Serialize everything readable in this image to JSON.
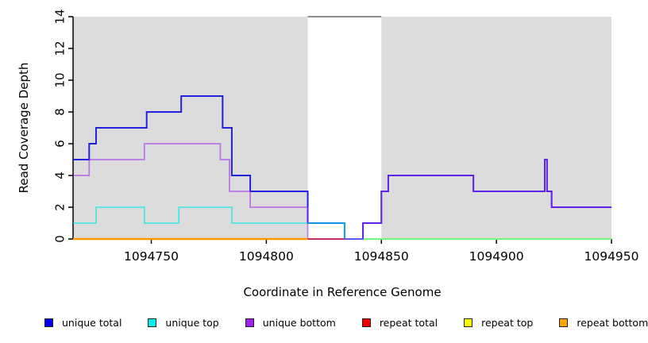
{
  "chart_data": {
    "type": "line",
    "subtype": "step-coverage-plot",
    "title": "",
    "xlabel": "Coordinate in Reference Genome",
    "ylabel": "Read Coverage Depth",
    "xlim": [
      1094716,
      1094950
    ],
    "ylim": [
      0,
      14
    ],
    "x_ticks": [
      1094750,
      1094800,
      1094850,
      1094900,
      1094950
    ],
    "y_ticks": [
      0,
      2,
      4,
      6,
      8,
      10,
      12,
      14
    ],
    "grid": false,
    "background_color": "#ffffff",
    "shaded_regions": [
      {
        "name": "left-unique-region",
        "x0": 1094716,
        "x1": 1094818,
        "color": "#dcdcdc"
      },
      {
        "name": "right-unique-region",
        "x0": 1094850,
        "x1": 1094950,
        "color": "#dcdcdc"
      }
    ],
    "gap_top_border": {
      "x0": 1094818,
      "x1": 1094850,
      "y": 14,
      "color": "#8c8c8c",
      "width": 2
    },
    "series": [
      {
        "name": "repeat top",
        "color": "#FFFF00",
        "alpha": 1,
        "line_width": 2.2,
        "points": [
          [
            1094842,
            0
          ],
          [
            1094950,
            0
          ]
        ]
      },
      {
        "name": "unique total",
        "color": "#2222DE",
        "alpha": 1,
        "line_width": 2,
        "points": [
          [
            1094716,
            5
          ],
          [
            1094723,
            6
          ],
          [
            1094726,
            7
          ],
          [
            1094748,
            8
          ],
          [
            1094763,
            9
          ],
          [
            1094781,
            7
          ],
          [
            1094785,
            4
          ],
          [
            1094793,
            3
          ],
          [
            1094818,
            1
          ],
          [
            1094834,
            0
          ],
          [
            1094842,
            1
          ],
          [
            1094850,
            3
          ],
          [
            1094853,
            4
          ],
          [
            1094890,
            3
          ],
          [
            1094921,
            5
          ],
          [
            1094922,
            3
          ],
          [
            1094924,
            2
          ],
          [
            1094950,
            2
          ]
        ]
      },
      {
        "name": "unique top",
        "color": "#00EBEB",
        "alpha": 0.75,
        "line_width": 1.6,
        "points": [
          [
            1094716,
            1
          ],
          [
            1094726,
            2
          ],
          [
            1094747,
            1
          ],
          [
            1094762,
            2
          ],
          [
            1094785,
            1
          ],
          [
            1094834,
            0
          ],
          [
            1094950,
            0
          ]
        ]
      },
      {
        "name": "unique bottom",
        "color": "#A020F0",
        "alpha": 0.55,
        "line_width": 1.8,
        "points": [
          [
            1094716,
            4
          ],
          [
            1094723,
            5
          ],
          [
            1094747,
            6
          ],
          [
            1094780,
            5
          ],
          [
            1094784,
            3
          ],
          [
            1094793,
            2
          ],
          [
            1094818,
            0
          ],
          [
            1094842,
            1
          ],
          [
            1094850,
            3
          ],
          [
            1094853,
            4
          ],
          [
            1094890,
            3
          ],
          [
            1094921,
            5
          ],
          [
            1094922,
            3
          ],
          [
            1094924,
            2
          ],
          [
            1094950,
            2
          ]
        ]
      },
      {
        "name": "repeat total",
        "color": "#E12350",
        "alpha": 0.8,
        "line_width": 1.8,
        "points": [
          [
            1094818,
            0
          ],
          [
            1094834,
            0
          ]
        ]
      },
      {
        "name": "repeat bottom",
        "color": "#FF9900",
        "alpha": 1,
        "line_width": 2.4,
        "points": [
          [
            1094716,
            0
          ],
          [
            1094818,
            0
          ]
        ]
      }
    ],
    "legend_position": "bottom"
  },
  "legend": {
    "items": [
      {
        "label": "unique total",
        "color": "#0000EE"
      },
      {
        "label": "unique top",
        "color": "#00EEEE"
      },
      {
        "label": "unique bottom",
        "color": "#A020F0"
      },
      {
        "label": "repeat total",
        "color": "#EE0000"
      },
      {
        "label": "repeat top",
        "color": "#FFFF00"
      },
      {
        "label": "repeat bottom",
        "color": "#FFA500"
      }
    ]
  },
  "axes": {
    "x_title": "Coordinate in Reference Genome",
    "y_title": "Read Coverage Depth"
  }
}
